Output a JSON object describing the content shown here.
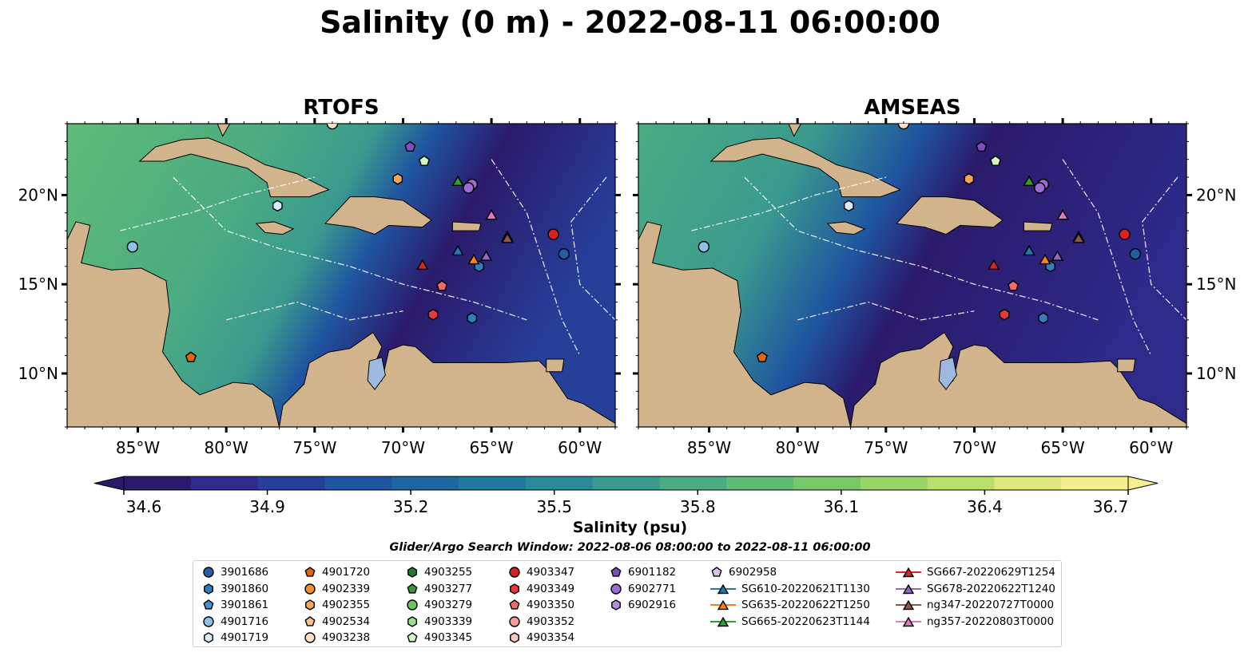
{
  "title": "Salinity (0 m) - 2022-08-11 06:00:00",
  "panels": [
    {
      "name": "RTOFS",
      "left_model": true
    },
    {
      "name": "AMSEAS",
      "left_model": false
    }
  ],
  "map": {
    "lon_range": [
      -89,
      -58
    ],
    "lat_range": [
      7,
      24
    ],
    "lon_ticks": [
      {
        "lon": -85,
        "label": "85°W"
      },
      {
        "lon": -80,
        "label": "80°W"
      },
      {
        "lon": -75,
        "label": "75°W"
      },
      {
        "lon": -70,
        "label": "70°W"
      },
      {
        "lon": -65,
        "label": "65°W"
      },
      {
        "lon": -60,
        "label": "60°W"
      }
    ],
    "lat_ticks": [
      {
        "lat": 20,
        "label": "20°N"
      },
      {
        "lat": 15,
        "label": "15°N"
      },
      {
        "lat": 10,
        "label": "10°N"
      }
    ],
    "colors": {
      "land": "#d2b48c",
      "ocean_fill": "#2a2a76",
      "lake": "#9db9e0",
      "grid": "#ffffff"
    }
  },
  "colorbar": {
    "label": "Salinity (psu)",
    "min": 34.6,
    "max": 36.7,
    "ticks": [
      "34.6",
      "34.9",
      "35.2",
      "35.5",
      "35.8",
      "36.1",
      "36.4",
      "36.7"
    ],
    "colors": [
      "#2b1a6b",
      "#2d2a8a",
      "#26409a",
      "#1f55a0",
      "#1d679f",
      "#20789c",
      "#2b8a98",
      "#3a9a8e",
      "#4bab82",
      "#5fbb76",
      "#78c86a",
      "#98d466",
      "#bbdf6d",
      "#e0e97f",
      "#f5ef8f"
    ]
  },
  "search_window": "Glider/Argo Search Window: 2022-08-06 08:00:00 to 2022-08-11 06:00:00",
  "legend": [
    {
      "label": "3901686",
      "marker": "circle",
      "color": "#1f5fa8"
    },
    {
      "label": "3901860",
      "marker": "hexagon",
      "color": "#2f7fbf"
    },
    {
      "label": "3901861",
      "marker": "pentagon",
      "color": "#4a90d0"
    },
    {
      "label": "4901716",
      "marker": "circle",
      "color": "#8ec0ea"
    },
    {
      "label": "4901719",
      "marker": "hexagon",
      "color": "#d6eaf8"
    },
    {
      "label": "4901720",
      "marker": "pentagon",
      "color": "#e0660c"
    },
    {
      "label": "4902339",
      "marker": "circle",
      "color": "#f28e30"
    },
    {
      "label": "4902355",
      "marker": "hexagon",
      "color": "#f5a55a"
    },
    {
      "label": "4902534",
      "marker": "pentagon",
      "color": "#f8c08d"
    },
    {
      "label": "4903238",
      "marker": "circle",
      "color": "#fde0c0"
    },
    {
      "label": "4903255",
      "marker": "hexagon",
      "color": "#1e7d2a"
    },
    {
      "label": "4903277",
      "marker": "pentagon",
      "color": "#3a9a3a"
    },
    {
      "label": "4903279",
      "marker": "circle",
      "color": "#6cc45c"
    },
    {
      "label": "4903339",
      "marker": "hexagon",
      "color": "#9cdc8e"
    },
    {
      "label": "4903345",
      "marker": "pentagon",
      "color": "#d3f4c7"
    },
    {
      "label": "4903347",
      "marker": "circle",
      "color": "#d62222"
    },
    {
      "label": "4903349",
      "marker": "hexagon",
      "color": "#e53a3a"
    },
    {
      "label": "4903350",
      "marker": "pentagon",
      "color": "#f06a6a"
    },
    {
      "label": "4903352",
      "marker": "circle",
      "color": "#f59a96"
    },
    {
      "label": "4903354",
      "marker": "hexagon",
      "color": "#fbc8c4"
    },
    {
      "label": "6901182",
      "marker": "pentagon",
      "color": "#7f4fbf"
    },
    {
      "label": "6902771",
      "marker": "circle",
      "color": "#9a6bd0"
    },
    {
      "label": "6902916",
      "marker": "hexagon",
      "color": "#b48de0"
    },
    {
      "label": "6902958",
      "marker": "pentagon",
      "color": "#d7c2f0"
    },
    {
      "label": "SG610-20220621T1130",
      "marker": "triangle",
      "color": "#1f77b4"
    },
    {
      "label": "SG635-20220622T1250",
      "marker": "triangle",
      "color": "#ff7f0e"
    },
    {
      "label": "SG665-20220623T1144",
      "marker": "triangle",
      "color": "#2ca02c"
    },
    {
      "label": "SG667-20220629T1254",
      "marker": "triangle",
      "color": "#d62728"
    },
    {
      "label": "SG678-20220622T1240",
      "marker": "triangle",
      "color": "#9467bd"
    },
    {
      "label": "ng347-20220727T0000",
      "marker": "triangle",
      "color": "#8c564b"
    },
    {
      "label": "ng357-20220803T0000",
      "marker": "triangle",
      "color": "#e377c2"
    }
  ]
}
